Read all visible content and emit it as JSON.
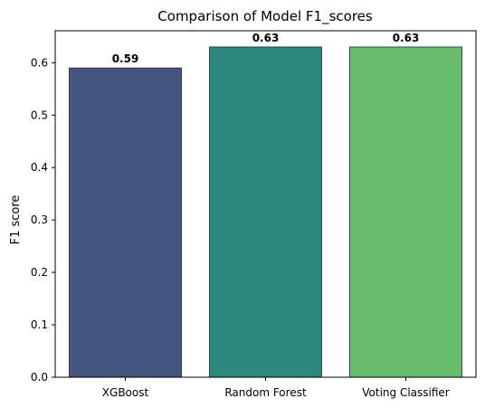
{
  "chart_data": {
    "type": "bar",
    "title": "Comparison of Model F1_scores",
    "xlabel": "",
    "ylabel": "F1 score",
    "categories": [
      "XGBoost",
      "Random Forest",
      "Voting Classifier"
    ],
    "values": [
      0.59,
      0.63,
      0.63
    ],
    "value_labels": [
      "0.59",
      "0.63",
      "0.63"
    ],
    "colors": [
      "#46557f",
      "#2e867d",
      "#6abd6e"
    ],
    "ylim": [
      0,
      0.661
    ],
    "yticks": [
      0.0,
      0.1,
      0.2,
      0.3,
      0.4,
      0.5,
      0.6
    ],
    "ytick_labels": [
      "0.0",
      "0.1",
      "0.2",
      "0.3",
      "0.4",
      "0.5",
      "0.6"
    ],
    "grid": false,
    "legend": "none"
  }
}
